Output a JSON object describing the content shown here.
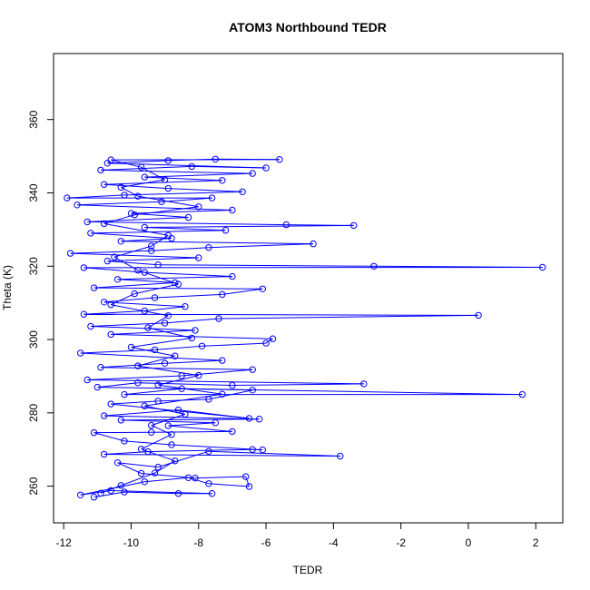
{
  "chart_data": {
    "type": "scatter",
    "title": "ATOM3 Northbound TEDR",
    "xlabel": "TEDR",
    "ylabel": "Theta (K)",
    "xlim": [
      -12.3,
      2.8
    ],
    "ylim": [
      250,
      378
    ],
    "xticks": [
      -12,
      -10,
      -8,
      -6,
      -4,
      -2,
      0,
      2
    ],
    "yticks": [
      260,
      280,
      300,
      320,
      340,
      360
    ],
    "grid": false,
    "series": [
      {
        "color": "#0000ff",
        "style": "points-connected-by-lines",
        "marker": "open-circle",
        "points": [
          [
            -11.1,
            257.0
          ],
          [
            -10.2,
            258.4
          ],
          [
            -8.6,
            258.0
          ],
          [
            -7.6,
            258.0
          ],
          [
            -10.6,
            258.8
          ],
          [
            -11.5,
            257.6
          ],
          [
            -9.6,
            261.2
          ],
          [
            -8.3,
            262.3
          ],
          [
            -7.7,
            260.7
          ],
          [
            -6.5,
            259.9
          ],
          [
            -6.6,
            262.6
          ],
          [
            -8.1,
            262.2
          ],
          [
            -9.7,
            263.5
          ],
          [
            -10.4,
            266.4
          ],
          [
            -9.2,
            265.2
          ],
          [
            -7.7,
            269.5
          ],
          [
            -3.8,
            268.2
          ],
          [
            -10.8,
            268.7
          ],
          [
            -9.5,
            269.4
          ],
          [
            -6.4,
            270.0
          ],
          [
            -6.1,
            269.9
          ],
          [
            -8.8,
            271.3
          ],
          [
            -10.2,
            272.3
          ],
          [
            -11.1,
            274.6
          ],
          [
            -9.4,
            274.7
          ],
          [
            -7.0,
            274.9
          ],
          [
            -8.9,
            276.5
          ],
          [
            -7.5,
            277.3
          ],
          [
            -10.3,
            278.0
          ],
          [
            -6.2,
            278.3
          ],
          [
            -10.8,
            279.2
          ],
          [
            -8.6,
            280.8
          ],
          [
            -6.5,
            278.5
          ],
          [
            -10.6,
            282.4
          ],
          [
            -9.2,
            283.2
          ],
          [
            -7.7,
            283.7
          ],
          [
            -6.4,
            286.2
          ],
          [
            -8.5,
            286.6
          ],
          [
            -10.2,
            285.0
          ],
          [
            1.6,
            285.0
          ],
          [
            -11.0,
            287.0
          ],
          [
            -9.8,
            288.2
          ],
          [
            -7.0,
            287.5
          ],
          [
            -3.1,
            287.9
          ],
          [
            -11.3,
            289.0
          ],
          [
            -8.5,
            290.1
          ],
          [
            -6.4,
            291.8
          ],
          [
            -10.9,
            292.4
          ],
          [
            -9.0,
            293.5
          ],
          [
            -7.3,
            294.3
          ],
          [
            -11.5,
            296.3
          ],
          [
            -9.3,
            297.2
          ],
          [
            -7.9,
            298.2
          ],
          [
            -6.0,
            299.0
          ],
          [
            -5.8,
            300.2
          ],
          [
            -10.6,
            301.4
          ],
          [
            -8.1,
            302.5
          ],
          [
            -11.2,
            303.6
          ],
          [
            -9.0,
            304.5
          ],
          [
            -7.4,
            305.7
          ],
          [
            0.3,
            306.6
          ],
          [
            -11.4,
            306.9
          ],
          [
            -9.6,
            307.8
          ],
          [
            -8.4,
            309.0
          ],
          [
            -10.8,
            310.2
          ],
          [
            -9.3,
            311.4
          ],
          [
            -7.3,
            312.3
          ],
          [
            -6.1,
            313.8
          ],
          [
            -11.1,
            314.1
          ],
          [
            -8.7,
            315.5
          ],
          [
            -10.4,
            316.4
          ],
          [
            -7.0,
            317.2
          ],
          [
            -9.6,
            318.3
          ],
          [
            -11.4,
            319.6
          ],
          [
            2.2,
            319.7
          ],
          [
            -2.8,
            320.0
          ],
          [
            -9.2,
            320.4
          ],
          [
            -10.7,
            321.4
          ],
          [
            -8.0,
            322.3
          ],
          [
            -11.8,
            323.5
          ],
          [
            -9.4,
            324.2
          ],
          [
            -7.7,
            325.1
          ],
          [
            -4.6,
            326.1
          ],
          [
            -10.3,
            326.8
          ],
          [
            -8.8,
            327.6
          ],
          [
            -11.2,
            329.0
          ],
          [
            -7.2,
            329.8
          ],
          [
            -9.6,
            330.6
          ],
          [
            -3.4,
            331.1
          ],
          [
            -5.4,
            331.3
          ],
          [
            -11.3,
            332.1
          ],
          [
            -8.3,
            333.3
          ],
          [
            -10.0,
            334.4
          ],
          [
            -7.0,
            335.3
          ],
          [
            -11.6,
            336.7
          ],
          [
            -9.1,
            337.6
          ],
          [
            -7.6,
            338.6
          ],
          [
            -11.9,
            338.6
          ],
          [
            -10.2,
            339.4
          ],
          [
            -6.7,
            340.3
          ],
          [
            -8.9,
            341.2
          ],
          [
            -10.8,
            342.3
          ],
          [
            -7.3,
            343.4
          ],
          [
            -9.6,
            344.3
          ],
          [
            -6.4,
            345.3
          ],
          [
            -10.9,
            346.2
          ],
          [
            -8.2,
            347.2
          ],
          [
            -6.0,
            346.8
          ],
          [
            -10.7,
            348.1
          ],
          [
            -8.9,
            348.8
          ],
          [
            -7.5,
            349.2
          ],
          [
            -5.6,
            349.1
          ],
          [
            -10.6,
            349.0
          ],
          [
            -9.7,
            347.0
          ],
          [
            -9.0,
            343.6
          ],
          [
            -10.3,
            341.5
          ],
          [
            -9.8,
            339.1
          ],
          [
            -8.0,
            336.2
          ],
          [
            -9.9,
            334.0
          ],
          [
            -10.8,
            331.6
          ],
          [
            -8.9,
            328.4
          ],
          [
            -9.4,
            325.5
          ],
          [
            -10.5,
            322.5
          ],
          [
            -9.8,
            318.9
          ],
          [
            -8.6,
            315.1
          ],
          [
            -9.9,
            312.5
          ],
          [
            -10.6,
            309.5
          ],
          [
            -8.9,
            306.5
          ],
          [
            -9.5,
            303.2
          ],
          [
            -8.2,
            300.4
          ],
          [
            -10.0,
            297.9
          ],
          [
            -8.7,
            295.5
          ],
          [
            -9.8,
            292.8
          ],
          [
            -8.0,
            290.2
          ],
          [
            -9.2,
            287.6
          ],
          [
            -7.3,
            285.1
          ],
          [
            -9.6,
            281.9
          ],
          [
            -8.4,
            279.6
          ],
          [
            -9.4,
            276.6
          ],
          [
            -8.8,
            274.1
          ],
          [
            -9.7,
            270.1
          ],
          [
            -8.7,
            266.9
          ],
          [
            -9.3,
            263.6
          ],
          [
            -10.3,
            260.2
          ],
          [
            -10.9,
            258.1
          ]
        ]
      }
    ]
  }
}
